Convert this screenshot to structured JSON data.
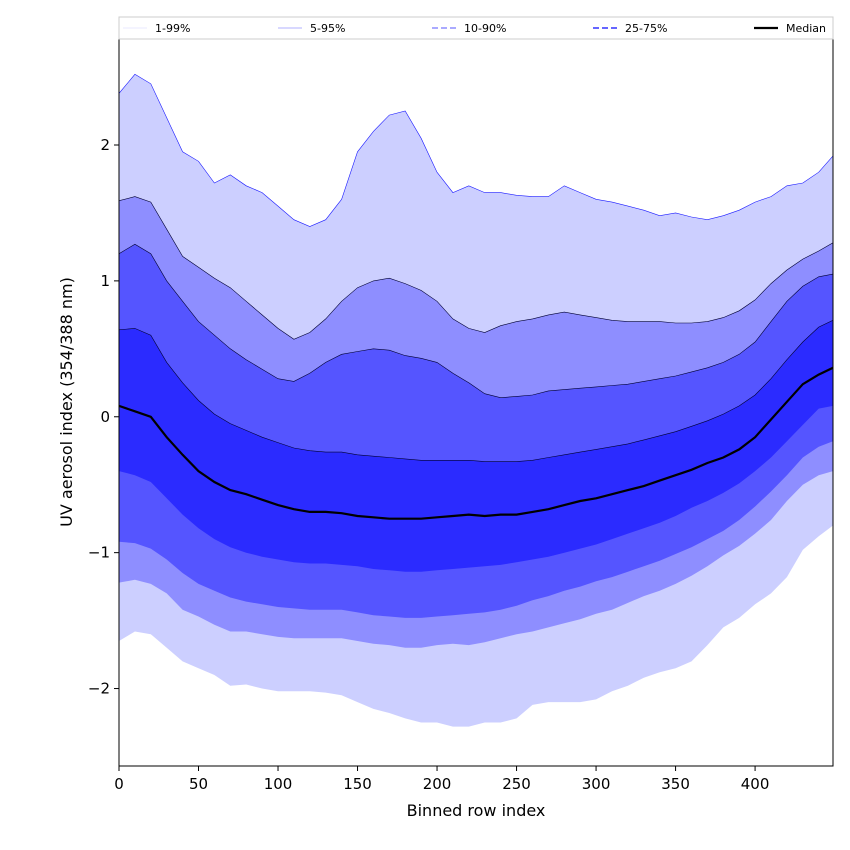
{
  "chart_data": {
    "type": "area",
    "xlabel": "Binned row index",
    "ylabel": "UV aerosol index (354/388 nm)",
    "xlim": [
      0,
      449
    ],
    "ylim": [
      -2.57,
      2.78
    ],
    "x_ticks": [
      0,
      50,
      100,
      150,
      200,
      250,
      300,
      350,
      400
    ],
    "y_ticks": [
      -2,
      -1,
      0,
      1,
      2
    ],
    "legend_position": "top",
    "x": [
      0,
      10,
      20,
      30,
      40,
      50,
      60,
      70,
      80,
      90,
      100,
      110,
      120,
      130,
      140,
      150,
      160,
      170,
      180,
      190,
      200,
      210,
      220,
      230,
      240,
      250,
      260,
      270,
      280,
      290,
      300,
      310,
      320,
      330,
      340,
      350,
      360,
      370,
      380,
      390,
      400,
      410,
      420,
      430,
      440,
      449
    ],
    "series": [
      {
        "name": "1-99%",
        "color": "#cccfff",
        "lower": [
          -1.65,
          -1.58,
          -1.6,
          -1.7,
          -1.8,
          -1.85,
          -1.9,
          -1.98,
          -1.97,
          -2.0,
          -2.02,
          -2.02,
          -2.02,
          -2.03,
          -2.05,
          -2.1,
          -2.15,
          -2.18,
          -2.22,
          -2.25,
          -2.25,
          -2.28,
          -2.28,
          -2.25,
          -2.25,
          -2.22,
          -2.12,
          -2.1,
          -2.1,
          -2.1,
          -2.08,
          -2.02,
          -1.98,
          -1.92,
          -1.88,
          -1.85,
          -1.8,
          -1.68,
          -1.55,
          -1.48,
          -1.38,
          -1.3,
          -1.18,
          -0.98,
          -0.88,
          -0.8
        ],
        "upper": [
          2.38,
          2.52,
          2.45,
          2.2,
          1.95,
          1.88,
          1.72,
          1.78,
          1.7,
          1.65,
          1.55,
          1.45,
          1.4,
          1.45,
          1.6,
          1.95,
          2.1,
          2.22,
          2.25,
          2.05,
          1.8,
          1.65,
          1.7,
          1.65,
          1.65,
          1.63,
          1.62,
          1.62,
          1.7,
          1.65,
          1.6,
          1.58,
          1.55,
          1.52,
          1.48,
          1.5,
          1.47,
          1.45,
          1.48,
          1.52,
          1.58,
          1.62,
          1.7,
          1.72,
          1.8,
          1.92
        ]
      },
      {
        "name": "5-95%",
        "color": "#8e8eff",
        "lower": [
          -1.22,
          -1.2,
          -1.23,
          -1.3,
          -1.42,
          -1.47,
          -1.53,
          -1.58,
          -1.58,
          -1.6,
          -1.62,
          -1.63,
          -1.63,
          -1.63,
          -1.63,
          -1.65,
          -1.67,
          -1.68,
          -1.7,
          -1.7,
          -1.68,
          -1.67,
          -1.68,
          -1.66,
          -1.63,
          -1.6,
          -1.58,
          -1.55,
          -1.52,
          -1.49,
          -1.45,
          -1.42,
          -1.37,
          -1.32,
          -1.28,
          -1.23,
          -1.17,
          -1.1,
          -1.02,
          -0.95,
          -0.86,
          -0.76,
          -0.62,
          -0.5,
          -0.43,
          -0.4
        ],
        "upper": [
          1.59,
          1.62,
          1.58,
          1.38,
          1.18,
          1.1,
          1.02,
          0.95,
          0.85,
          0.75,
          0.65,
          0.57,
          0.62,
          0.72,
          0.85,
          0.95,
          1.0,
          1.02,
          0.98,
          0.93,
          0.85,
          0.72,
          0.65,
          0.62,
          0.67,
          0.7,
          0.72,
          0.75,
          0.77,
          0.75,
          0.73,
          0.71,
          0.7,
          0.7,
          0.7,
          0.69,
          0.69,
          0.7,
          0.73,
          0.78,
          0.86,
          0.98,
          1.08,
          1.16,
          1.22,
          1.28
        ]
      },
      {
        "name": "10-90%",
        "color": "#5555ff",
        "lower": [
          -0.92,
          -0.93,
          -0.97,
          -1.05,
          -1.15,
          -1.23,
          -1.28,
          -1.33,
          -1.36,
          -1.38,
          -1.4,
          -1.41,
          -1.42,
          -1.42,
          -1.42,
          -1.44,
          -1.46,
          -1.47,
          -1.48,
          -1.48,
          -1.47,
          -1.46,
          -1.45,
          -1.44,
          -1.42,
          -1.39,
          -1.35,
          -1.32,
          -1.28,
          -1.25,
          -1.21,
          -1.18,
          -1.14,
          -1.1,
          -1.06,
          -1.01,
          -0.96,
          -0.9,
          -0.84,
          -0.76,
          -0.66,
          -0.55,
          -0.43,
          -0.3,
          -0.22,
          -0.18
        ],
        "upper": [
          1.2,
          1.27,
          1.2,
          1.0,
          0.85,
          0.7,
          0.6,
          0.5,
          0.42,
          0.35,
          0.28,
          0.26,
          0.32,
          0.4,
          0.46,
          0.48,
          0.5,
          0.49,
          0.45,
          0.43,
          0.4,
          0.32,
          0.25,
          0.17,
          0.14,
          0.15,
          0.16,
          0.19,
          0.2,
          0.21,
          0.22,
          0.23,
          0.24,
          0.26,
          0.28,
          0.3,
          0.33,
          0.36,
          0.4,
          0.46,
          0.55,
          0.7,
          0.85,
          0.96,
          1.03,
          1.05
        ]
      },
      {
        "name": "25-75%",
        "color": "#2b2bff",
        "lower": [
          -0.4,
          -0.43,
          -0.48,
          -0.6,
          -0.72,
          -0.82,
          -0.9,
          -0.96,
          -1.0,
          -1.03,
          -1.05,
          -1.07,
          -1.08,
          -1.08,
          -1.09,
          -1.1,
          -1.12,
          -1.13,
          -1.14,
          -1.14,
          -1.13,
          -1.12,
          -1.11,
          -1.1,
          -1.09,
          -1.07,
          -1.05,
          -1.03,
          -1.0,
          -0.97,
          -0.94,
          -0.9,
          -0.86,
          -0.82,
          -0.78,
          -0.73,
          -0.67,
          -0.62,
          -0.56,
          -0.49,
          -0.4,
          -0.3,
          -0.18,
          -0.06,
          0.06,
          0.08
        ],
        "upper": [
          0.64,
          0.65,
          0.6,
          0.4,
          0.25,
          0.12,
          0.02,
          -0.05,
          -0.1,
          -0.15,
          -0.19,
          -0.23,
          -0.25,
          -0.26,
          -0.26,
          -0.28,
          -0.29,
          -0.3,
          -0.31,
          -0.32,
          -0.32,
          -0.32,
          -0.32,
          -0.33,
          -0.33,
          -0.33,
          -0.32,
          -0.3,
          -0.28,
          -0.26,
          -0.24,
          -0.22,
          -0.2,
          -0.17,
          -0.14,
          -0.11,
          -0.07,
          -0.03,
          0.02,
          0.08,
          0.16,
          0.28,
          0.42,
          0.55,
          0.66,
          0.71
        ]
      },
      {
        "name": "Median",
        "color": "#000000",
        "values": [
          0.08,
          0.04,
          0.0,
          -0.15,
          -0.28,
          -0.4,
          -0.48,
          -0.54,
          -0.57,
          -0.61,
          -0.65,
          -0.68,
          -0.7,
          -0.7,
          -0.71,
          -0.73,
          -0.74,
          -0.75,
          -0.75,
          -0.75,
          -0.74,
          -0.73,
          -0.72,
          -0.73,
          -0.72,
          -0.72,
          -0.7,
          -0.68,
          -0.65,
          -0.62,
          -0.6,
          -0.57,
          -0.54,
          -0.51,
          -0.47,
          -0.43,
          -0.39,
          -0.34,
          -0.3,
          -0.24,
          -0.15,
          -0.02,
          0.11,
          0.24,
          0.31,
          0.36
        ]
      }
    ]
  }
}
